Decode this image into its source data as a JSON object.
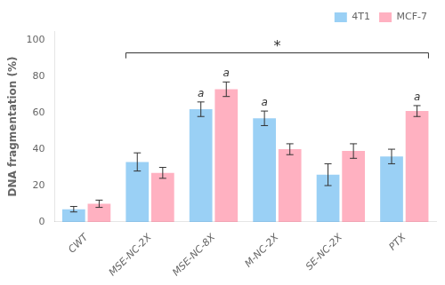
{
  "chart_data": {
    "type": "bar",
    "categories": [
      "CWT",
      "MSE-NC-2X",
      "MSE-NC-8X",
      "M-NC-2X",
      "SE-NC-2X",
      "PTX"
    ],
    "series": [
      {
        "name": "4T1",
        "values": [
          7,
          33,
          62,
          57,
          26,
          36
        ],
        "errors": [
          1.5,
          5,
          4,
          4,
          6,
          4
        ]
      },
      {
        "name": "MCF-7",
        "values": [
          10,
          27,
          73,
          40,
          39,
          61
        ],
        "errors": [
          2,
          3,
          4,
          3,
          4,
          3
        ]
      }
    ],
    "ylabel": "DNA fragmentation (%)",
    "ylim": [
      0,
      105
    ],
    "yticks": [
      0,
      20,
      40,
      60,
      80,
      100
    ],
    "grid": false,
    "legend": "upper right",
    "annotations": [
      {
        "text": "a",
        "series": "4T1",
        "category": "MSE-NC-8X"
      },
      {
        "text": "a",
        "series": "4T1",
        "category": "M-NC-2X"
      },
      {
        "text": "a",
        "series": "MCF-7",
        "category": "MSE-NC-8X"
      },
      {
        "text": "a",
        "series": "MCF-7",
        "category": "PTX"
      },
      {
        "text": "*",
        "from": "MSE-NC-2X",
        "to": "PTX",
        "y": 93,
        "drop": 3
      }
    ]
  }
}
